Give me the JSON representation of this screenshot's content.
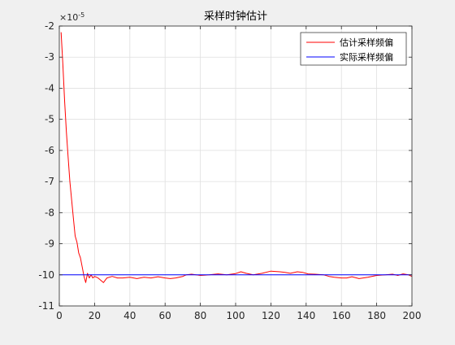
{
  "chart_data": {
    "type": "line",
    "title": "采样时钟估计",
    "xlabel": "",
    "ylabel": "",
    "xlim": [
      0,
      200
    ],
    "ylim": [
      -11,
      -2
    ],
    "y_exponent_label": "×10",
    "y_exponent_power": "-5",
    "x_ticks": [
      0,
      20,
      40,
      60,
      80,
      100,
      120,
      140,
      160,
      180,
      200
    ],
    "y_ticks": [
      -2,
      -3,
      -4,
      -5,
      -6,
      -7,
      -8,
      -9,
      -10,
      -11
    ],
    "grid": true,
    "legend_position": "top-right",
    "series": [
      {
        "name": "估计采样频偏",
        "color": "#ff0000",
        "x": [
          1,
          2,
          3,
          4,
          5,
          6,
          7,
          8,
          9,
          10,
          11,
          12,
          13,
          14,
          15,
          16,
          17,
          18,
          19,
          20,
          22,
          24,
          25,
          27,
          30,
          33,
          36,
          40,
          44,
          48,
          52,
          56,
          60,
          63,
          66,
          70,
          72,
          75,
          80,
          85,
          90,
          95,
          100,
          103,
          106,
          110,
          115,
          120,
          125,
          128,
          131,
          135,
          138,
          141,
          145,
          150,
          153,
          156,
          160,
          163,
          166,
          170,
          175,
          180,
          185,
          189,
          192,
          195,
          198,
          200
        ],
        "values": [
          -2.2,
          -3.2,
          -4.4,
          -5.4,
          -6.2,
          -7.0,
          -7.6,
          -8.2,
          -8.75,
          -8.95,
          -9.3,
          -9.45,
          -9.75,
          -10.05,
          -10.25,
          -9.95,
          -10.1,
          -10.0,
          -10.1,
          -10.05,
          -10.1,
          -10.2,
          -10.25,
          -10.1,
          -10.05,
          -10.1,
          -10.1,
          -10.08,
          -10.12,
          -10.08,
          -10.1,
          -10.06,
          -10.1,
          -10.12,
          -10.1,
          -10.05,
          -10.0,
          -9.98,
          -10.02,
          -10.0,
          -9.97,
          -10.0,
          -9.96,
          -9.9,
          -9.95,
          -10.0,
          -9.95,
          -9.88,
          -9.9,
          -9.92,
          -9.95,
          -9.9,
          -9.92,
          -9.97,
          -9.98,
          -10.0,
          -10.05,
          -10.08,
          -10.1,
          -10.1,
          -10.06,
          -10.12,
          -10.08,
          -10.02,
          -10.0,
          -9.98,
          -10.02,
          -9.97,
          -10.0,
          -10.05
        ]
      },
      {
        "name": "实际采样频偏",
        "color": "#0000ff",
        "x": [
          0,
          200
        ],
        "values": [
          -10.0,
          -10.0
        ]
      }
    ]
  }
}
